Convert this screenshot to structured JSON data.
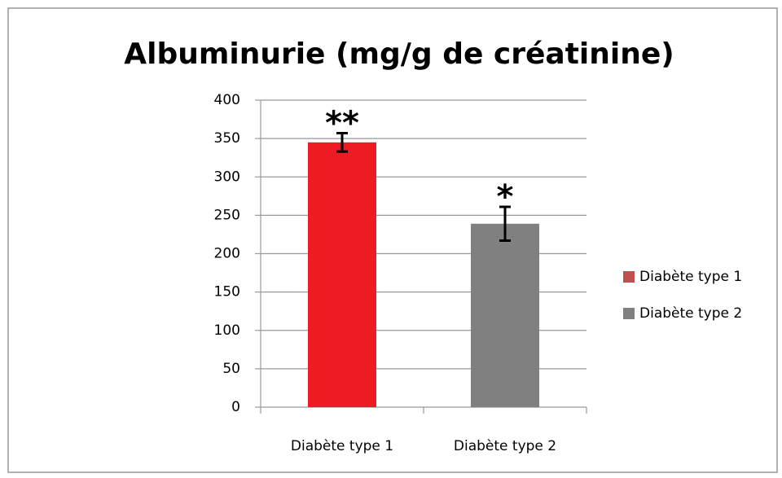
{
  "chart_data": {
    "type": "bar",
    "title": "Albuminurie (mg/g de créatinine)",
    "categories": [
      "Diabète type 1",
      "Diabète type 2"
    ],
    "values": [
      345,
      239
    ],
    "errors": [
      12,
      22
    ],
    "annotations": [
      "**",
      "*"
    ],
    "colors": [
      "#ed1c24",
      "#808080"
    ],
    "legend_colors": [
      "#c0504d",
      "#808080"
    ],
    "ylim": [
      0,
      400
    ],
    "yticks": [
      0,
      50,
      100,
      150,
      200,
      250,
      300,
      350,
      400
    ],
    "grid": true,
    "legend": "right"
  }
}
